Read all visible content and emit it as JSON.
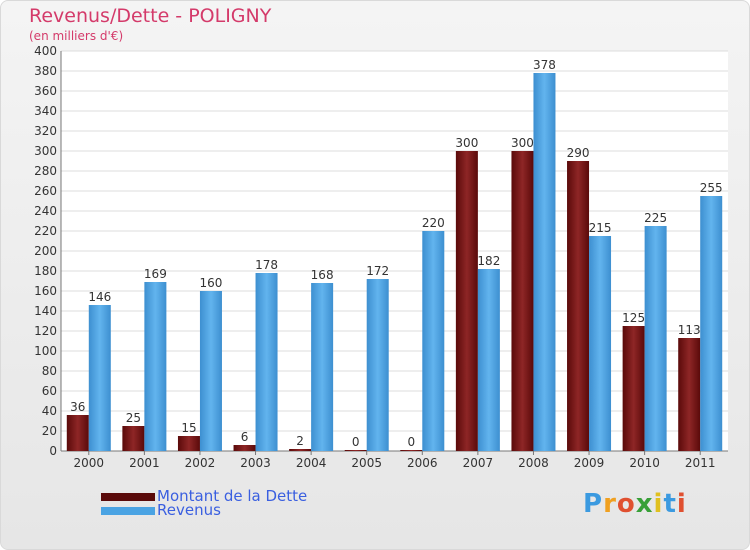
{
  "chart_data": {
    "type": "bar",
    "title": "Revenus/Dette - POLIGNY",
    "subtitle": "(en milliers d'€)",
    "categories": [
      "2000",
      "2001",
      "2002",
      "2003",
      "2004",
      "2005",
      "2006",
      "2007",
      "2008",
      "2009",
      "2010",
      "2011"
    ],
    "series": [
      {
        "name": "Montant de la Dette",
        "color": "#7a1010",
        "values": [
          36,
          25,
          15,
          6,
          2,
          0,
          0,
          300,
          300,
          290,
          125,
          113
        ]
      },
      {
        "name": "Revenus",
        "color": "#4aa3e3",
        "values": [
          146,
          169,
          160,
          178,
          168,
          172,
          220,
          182,
          378,
          215,
          225,
          255
        ]
      }
    ],
    "ylim": [
      0,
      400
    ],
    "ytick_step": 20,
    "grid": true,
    "legend": "bottom-left"
  },
  "legend": {
    "debt_label": "Montant de la Dette",
    "revenue_label": "Revenus"
  },
  "logo": {
    "letters": [
      "P",
      "r",
      "o",
      "x",
      "i",
      "t",
      "i"
    ]
  }
}
